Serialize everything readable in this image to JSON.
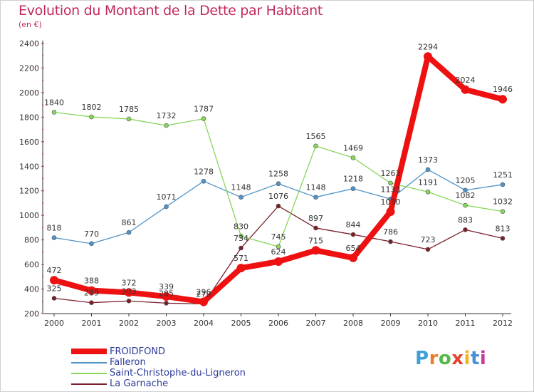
{
  "title": "Evolution du Montant de la Dette par Habitant",
  "subtitle": "(en €)",
  "brand": {
    "text": "Proxiti",
    "letter_colors": [
      "#3fa0d8",
      "#e87d2e",
      "#58b848",
      "#e2452f",
      "#f0b428",
      "#4a8fd6",
      "#c8399a"
    ]
  },
  "chart_data": {
    "type": "line",
    "x": [
      "2000",
      "2001",
      "2002",
      "2003",
      "2004",
      "2005",
      "2006",
      "2007",
      "2008",
      "2009",
      "2010",
      "2011",
      "2012"
    ],
    "ylim": [
      200,
      2400
    ],
    "yticks": [
      "200",
      "400",
      "600",
      "800",
      "1000",
      "1200",
      "1400",
      "1600",
      "1800",
      "2000",
      "2200",
      "2400"
    ],
    "grid": false,
    "legend_position": "bottom-left",
    "series": [
      {
        "name": "FROIDFOND",
        "color": "#ee1111",
        "values": [
          472,
          388,
          372,
          339,
          296,
          571,
          624,
          715,
          654,
          1030,
          2294,
          2024,
          1946
        ],
        "labels": [
          "472",
          "388",
          "372",
          "339",
          "296",
          "571",
          "624",
          "715",
          "654",
          "1030",
          "2294",
          "2024",
          "1946"
        ]
      },
      {
        "name": "Falleron",
        "color": "#4f93c8",
        "values": [
          818,
          770,
          861,
          1071,
          1278,
          1148,
          1258,
          1148,
          1218,
          1133,
          1373,
          1205,
          1251
        ],
        "labels": [
          "818",
          "770",
          "861",
          "1071",
          "1278",
          "1148",
          "1258",
          "1148",
          "1218",
          "1133",
          "1373",
          "1205",
          "1251"
        ]
      },
      {
        "name": "Saint-Christophe-du-Ligneron",
        "color": "#88d65a",
        "values": [
          1840,
          1802,
          1785,
          1732,
          1787,
          830,
          745,
          1565,
          1469,
          1263,
          1191,
          1082,
          1032
        ],
        "labels": [
          "1840",
          "1802",
          "1785",
          "1732",
          "1787",
          "830",
          "745",
          "1565",
          "1469",
          "1263",
          "1191",
          "1082",
          "1032"
        ]
      },
      {
        "name": "La Garnache",
        "color": "#7a1f2a",
        "values": [
          325,
          289,
          303,
          285,
          279,
          734,
          1076,
          897,
          844,
          786,
          723,
          883,
          813
        ],
        "labels": [
          "325",
          "289",
          "303",
          "285",
          "279",
          "734",
          "1076",
          "897",
          "844",
          "786",
          "723",
          "883",
          "813"
        ]
      }
    ]
  }
}
